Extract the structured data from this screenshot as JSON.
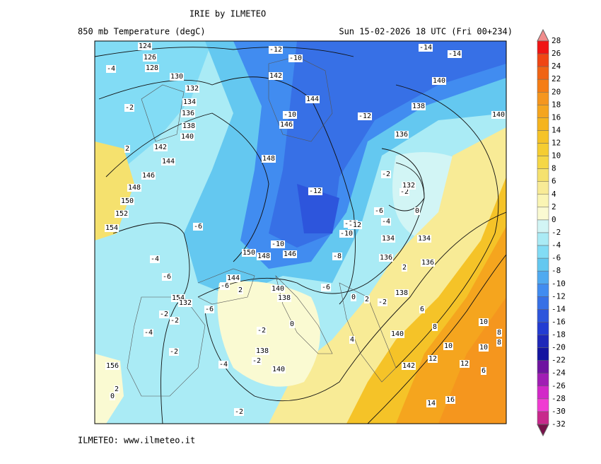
{
  "header": {
    "title": "IRIE by ILMETEO",
    "subtitle": "850 mb Temperature (degC)",
    "valid_time": "Sun 15-02-2026 18 UTC (Fri 00+234)"
  },
  "footer": "ILMETEO: www.ilmeteo.it",
  "legend": {
    "levels": [
      28,
      26,
      24,
      22,
      20,
      18,
      16,
      14,
      12,
      10,
      8,
      6,
      4,
      2,
      0,
      -2,
      -4,
      -6,
      -8,
      -10,
      -12,
      -14,
      -16,
      -18,
      -20,
      -22,
      -24,
      -26,
      -28,
      -30,
      -32
    ],
    "colors": [
      "#f01414",
      "#f04614",
      "#f06414",
      "#f57d14",
      "#f5961e",
      "#f5a51e",
      "#f5b41e",
      "#f5c328",
      "#f5cd32",
      "#f5d746",
      "#f5e16e",
      "#f8eb96",
      "#faf5b4",
      "#fafad2",
      "#d2f5f5",
      "#aaebf5",
      "#82dcf5",
      "#64c8f0",
      "#50aaf0",
      "#418cf0",
      "#3770e6",
      "#2d55dc",
      "#233cd2",
      "#1e28b9",
      "#1414a0",
      "#6e14a0",
      "#a01eb4",
      "#d228c8",
      "#f03cd2",
      "#c8288c",
      "#a0145a"
    ],
    "over_color": "#f08c8c",
    "under_color": "#78104a"
  },
  "map_labels": [
    "124",
    "126",
    "128",
    "130",
    "132",
    "134",
    "136",
    "138",
    "140",
    "142",
    "144",
    "146",
    "148",
    "150",
    "152",
    "154",
    "-4",
    "-2",
    "2",
    "-12",
    "-10",
    "142",
    "144",
    "-10",
    "146",
    "148",
    "-12",
    "-14",
    "-14",
    "140",
    "140",
    "138",
    "136",
    "-12",
    "-2",
    "-2",
    "132",
    "0",
    "-6",
    "-4",
    "-10",
    "-12",
    "-10",
    "-8",
    "134",
    "134",
    "136",
    "2",
    "136",
    "-10",
    "150",
    "148",
    "146",
    "-6",
    "-4",
    "-6",
    "154",
    "132",
    "-2",
    "-2",
    "-4",
    "-2",
    "156",
    "2",
    "0",
    "144",
    "-6",
    "140",
    "138",
    "0",
    "-2",
    "138",
    "140",
    "-2",
    "-4",
    "4",
    "2",
    "-6",
    "0",
    "138",
    "6",
    "140",
    "8",
    "10",
    "10",
    "142",
    "12",
    "12",
    "14",
    "16",
    "10",
    "8",
    "6",
    "8",
    "-2",
    "-2",
    "2",
    "-6"
  ]
}
